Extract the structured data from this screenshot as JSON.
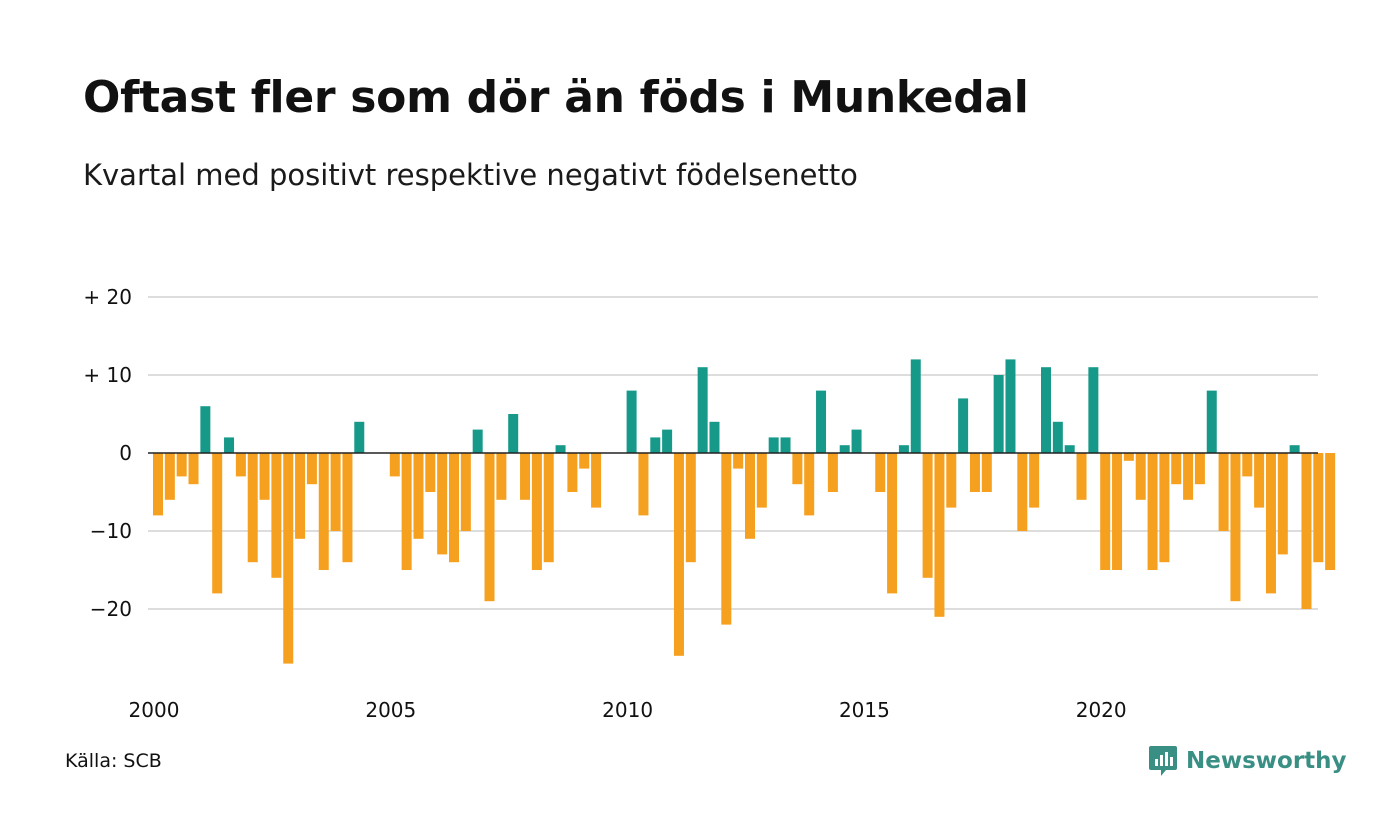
{
  "header": {
    "title": "Oftast fler som dör än föds i Munkedal",
    "subtitle": "Kvartal med positivt respektive negativt födelsenetto"
  },
  "footer": {
    "source": "Källa: SCB",
    "brand": "Newsworthy",
    "brand_icon": "newsworthy-logo-icon"
  },
  "colors": {
    "positive": "#17998a",
    "negative": "#f5a01e",
    "grid": "#dddddd",
    "zero": "#222222",
    "brand": "#3a8f84"
  },
  "chart_data": {
    "type": "bar",
    "start_year": 2000,
    "x_ticks": [
      "2000",
      "2005",
      "2010",
      "2015",
      "2020"
    ],
    "y_ticks": [
      {
        "value": 20,
        "label": "+ 20"
      },
      {
        "value": 10,
        "label": "+ 10"
      },
      {
        "value": 0,
        "label": "0"
      },
      {
        "value": -10,
        "label": "−10"
      },
      {
        "value": -20,
        "label": "−20"
      }
    ],
    "ylim": [
      -28,
      20
    ],
    "grid": true,
    "values": [
      -8,
      -6,
      -3,
      -4,
      6,
      -18,
      2,
      -3,
      -14,
      -6,
      -16,
      -27,
      -11,
      -4,
      -15,
      -10,
      -14,
      4,
      0,
      0,
      -3,
      -15,
      -11,
      -5,
      -13,
      -14,
      -10,
      3,
      -19,
      -6,
      5,
      -6,
      -15,
      -14,
      1,
      -5,
      -2,
      -7,
      0,
      0,
      8,
      -8,
      2,
      3,
      -26,
      -14,
      11,
      4,
      -22,
      -2,
      -11,
      -7,
      2,
      2,
      -4,
      -8,
      8,
      -5,
      1,
      3,
      0,
      -5,
      -18,
      1,
      12,
      -16,
      -21,
      -7,
      7,
      -5,
      -5,
      10,
      12,
      -10,
      -7,
      11,
      4,
      1,
      -6,
      11,
      -15,
      -15,
      -1,
      -6,
      -15,
      -14,
      -4,
      -6,
      -4,
      8,
      -10,
      -19,
      -3,
      -7,
      -18,
      -13,
      1,
      -20,
      -14,
      -15
    ]
  }
}
